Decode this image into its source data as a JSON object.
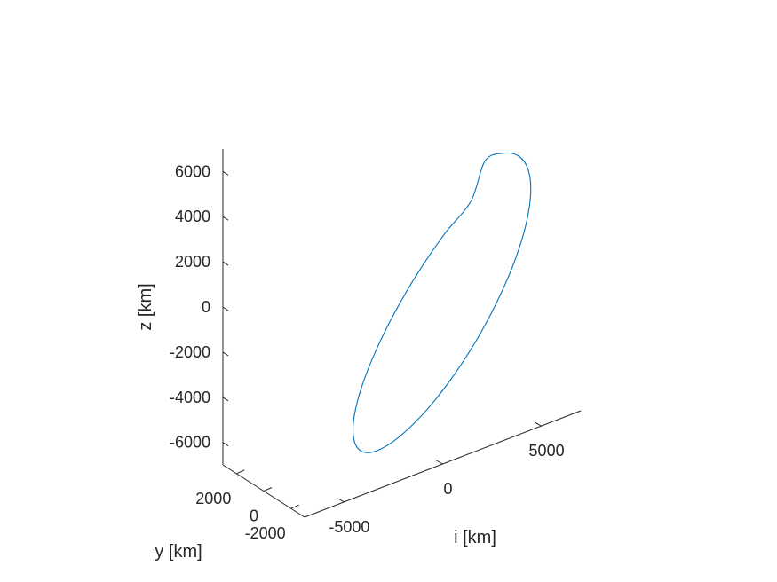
{
  "chart_data": {
    "type": "line",
    "projection": "3d",
    "xlabel": "i [km]",
    "ylabel": "y [km]",
    "zlabel": "z [km]",
    "x_ticks": [
      -5000,
      0,
      5000
    ],
    "y_ticks": [
      -2000,
      0,
      2000
    ],
    "z_ticks": [
      -6000,
      -4000,
      -2000,
      0,
      2000,
      4000,
      6000
    ],
    "xlim": [
      -7000,
      7000
    ],
    "ylim": [
      -3000,
      3000
    ],
    "zlim": [
      -7000,
      7000
    ],
    "grid": false,
    "series": [
      {
        "color": "#0072BD",
        "closed": true,
        "x": [
          1700,
          2865,
          3800,
          4440,
          4740,
          4680,
          4270,
          3550,
          2590,
          1450,
          210,
          -1060,
          -2260,
          -3290,
          -4080,
          -4560,
          -4700,
          -4490,
          -3930,
          -3070,
          -1960,
          -680,
          660,
          1700
        ],
        "y": [
          -880,
          -510,
          -130,
          250,
          610,
          930,
          1190,
          1380,
          1480,
          1500,
          1420,
          1250,
          1000,
          690,
          330,
          -40,
          -410,
          -760,
          -1060,
          -1300,
          -1460,
          -1540,
          -1520,
          -880
        ],
        "z": [
          6150,
          5990,
          5420,
          4500,
          3300,
          1900,
          400,
          -1100,
          -2500,
          -3720,
          -4680,
          -5320,
          -5610,
          -5520,
          -5050,
          -4230,
          -3120,
          -1790,
          -320,
          1190,
          2630,
          3900,
          4890,
          6150
        ]
      }
    ]
  }
}
